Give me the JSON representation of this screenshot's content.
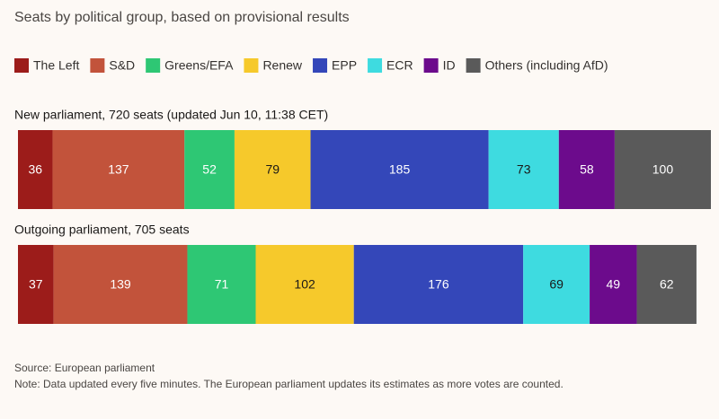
{
  "chart_data": {
    "type": "stacked-bar-horizontal",
    "title": "Seats by political group, based on provisional results",
    "categories": [
      "New parliament, 720 seats (updated Jun 10, 11:38 CET)",
      "Outgoing parliament, 705 seats"
    ],
    "series": [
      {
        "name": "The Left",
        "color": "#9c1c1a",
        "values": [
          36,
          37
        ]
      },
      {
        "name": "S&D",
        "color": "#c2533b",
        "values": [
          137,
          139
        ]
      },
      {
        "name": "Greens/EFA",
        "color": "#2ec774",
        "values": [
          52,
          71
        ]
      },
      {
        "name": "Renew",
        "color": "#f6c92b",
        "values": [
          79,
          102
        ]
      },
      {
        "name": "EPP",
        "color": "#3447b9",
        "values": [
          185,
          176
        ]
      },
      {
        "name": "ECR",
        "color": "#3edbe0",
        "values": [
          73,
          69
        ]
      },
      {
        "name": "ID",
        "color": "#6c0b8c",
        "values": [
          58,
          49
        ]
      },
      {
        "name": "Others (including AfD)",
        "color": "#5a5a5a",
        "values": [
          100,
          62
        ]
      }
    ],
    "source": "Source: European parliament",
    "note": "Note: Data updated every five minutes. The European parliament updates its estimates as more votes are counted."
  }
}
